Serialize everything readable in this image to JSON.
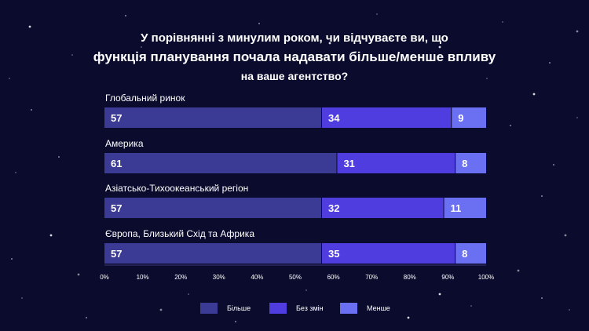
{
  "title": {
    "line1": "У порівнянні з минулим роком, чи відчуваєте ви, що",
    "line2": "функція планування почала надавати більше/менше впливу",
    "line3": "на ваше агентство?"
  },
  "colors": {
    "background": "#0b0b2e",
    "more": "#3b3b96",
    "same": "#4f3de0",
    "less": "#6b6ff2",
    "text": "#ffffff"
  },
  "chart_data": {
    "type": "bar",
    "orientation": "horizontal",
    "stacked": true,
    "categories": [
      "Глобальний ринок",
      "Америка",
      "Азіатсько-Тихоокеанський регіон",
      "Європа, Близький Схід та Африка"
    ],
    "series": [
      {
        "name": "Більше",
        "values": [
          57,
          61,
          57,
          57
        ],
        "color": "#3b3b96"
      },
      {
        "name": "Без змін",
        "values": [
          34,
          31,
          32,
          35
        ],
        "color": "#4f3de0"
      },
      {
        "name": "Менше",
        "values": [
          9,
          8,
          11,
          8
        ],
        "color": "#6b6ff2"
      }
    ],
    "xlim": [
      0,
      100
    ],
    "xticks": [
      "0%",
      "10%",
      "20%",
      "30%",
      "40%",
      "50%",
      "60%",
      "70%",
      "80%",
      "90%",
      "100%"
    ],
    "grid": false,
    "legend": "bottom"
  }
}
